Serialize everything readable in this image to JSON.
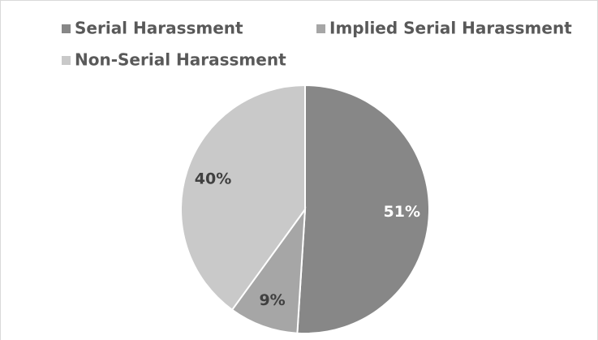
{
  "chart_data": {
    "type": "pie",
    "categories": [
      "Serial Harassment",
      "Implied Serial Harassment",
      "Non-Serial Harassment"
    ],
    "values": [
      51,
      9,
      40
    ],
    "value_labels": [
      "51%",
      "9%",
      "40%"
    ],
    "colors": [
      "#878787",
      "#a6a6a6",
      "#c9c9c9"
    ],
    "label_colors": [
      "#ffffff",
      "#404040",
      "#404040"
    ]
  }
}
